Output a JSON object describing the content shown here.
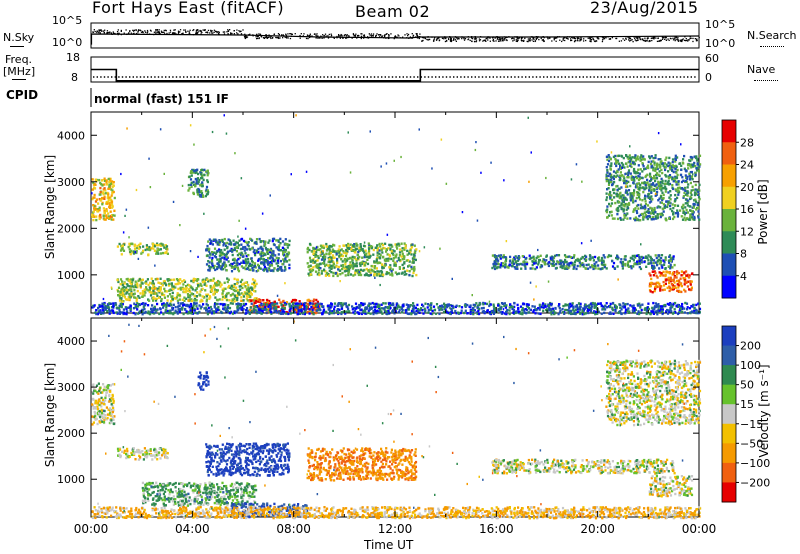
{
  "header": {
    "station": "Fort Hays East (fitACF)",
    "beam": "Beam 02",
    "date": "23/Aug/2015"
  },
  "nsky_panel": {
    "left_label": "N.Sky",
    "left_ticks": [
      "10^5",
      "10^0"
    ],
    "right_label": "N.Search",
    "right_ticks": [
      "10^5",
      "10^0"
    ]
  },
  "freq_panel": {
    "left_label_1": "Freq.",
    "left_label_2": "[MHz]",
    "left_ticks": [
      "18",
      "8"
    ],
    "right_label": "Nave",
    "right_ticks": [
      "60",
      "0"
    ],
    "freq_series": [
      {
        "t": 0.0,
        "mhz": 15.0
      },
      {
        "t": 1.0,
        "mhz": 15.0
      },
      {
        "t": 1.0,
        "mhz": 10.5
      },
      {
        "t": 13.0,
        "mhz": 10.5
      },
      {
        "t": 13.0,
        "mhz": 15.0
      },
      {
        "t": 24.0,
        "mhz": 15.0
      }
    ],
    "nave_level": 12
  },
  "cpid": {
    "label": "CPID",
    "text": "normal (fast) 151 IF"
  },
  "colors": {
    "power_scale": [
      "#0000ff",
      "#1e4fb4",
      "#2e8b57",
      "#6ab23c",
      "#f0d020",
      "#f7a000",
      "#f06010",
      "#e60000"
    ],
    "velocity_scale": [
      "#1c3fbf",
      "#2e5ea8",
      "#2f8a50",
      "#66c22c",
      "#c8c8c8",
      "#f2c000",
      "#f59a00",
      "#f06010",
      "#e60000"
    ]
  },
  "chart_data": [
    {
      "type": "heatmap",
      "name_panel": "power",
      "ylabel": "Slant Range [km]",
      "yticks": [
        "4000",
        "3000",
        "2000",
        "1000"
      ],
      "ylim": [
        180,
        4500
      ],
      "xlim": [
        0,
        24
      ],
      "colorbar": {
        "label": "Power [dB]",
        "ticks": [
          "28",
          "24",
          "20",
          "16",
          "12",
          "8",
          "4"
        ],
        "range": [
          0,
          30
        ]
      },
      "regions": [
        {
          "t0": 0.0,
          "t1": 0.9,
          "r0": 2200,
          "r1": 3100,
          "value": 18
        },
        {
          "t0": 1.0,
          "t1": 3.0,
          "r0": 1450,
          "r1": 1700,
          "value": 14
        },
        {
          "t0": 3.8,
          "t1": 4.6,
          "r0": 2700,
          "r1": 3300,
          "value": 10
        },
        {
          "t0": 4.5,
          "t1": 7.8,
          "r0": 1100,
          "r1": 1800,
          "value": 8
        },
        {
          "t0": 1.0,
          "t1": 6.5,
          "r0": 450,
          "r1": 950,
          "value": 14
        },
        {
          "t0": 6.2,
          "t1": 9.0,
          "r0": 200,
          "r1": 500,
          "value": 26
        },
        {
          "t0": 8.5,
          "t1": 12.8,
          "r0": 1000,
          "r1": 1700,
          "value": 12
        },
        {
          "t0": 15.8,
          "t1": 23.0,
          "r0": 1150,
          "r1": 1450,
          "value": 8
        },
        {
          "t0": 20.3,
          "t1": 24.0,
          "r0": 2200,
          "r1": 3600,
          "value": 10
        },
        {
          "t0": 22.0,
          "t1": 23.7,
          "r0": 650,
          "r1": 1100,
          "value": 24
        },
        {
          "t0": 0.0,
          "t1": 24.0,
          "r0": 180,
          "r1": 420,
          "value": 6
        }
      ]
    },
    {
      "type": "heatmap",
      "name_panel": "velocity",
      "ylabel": "Slant Range [km]",
      "yticks": [
        "4000",
        "3000",
        "2000",
        "1000"
      ],
      "ylim": [
        180,
        4500
      ],
      "xlim": [
        0,
        24
      ],
      "xlabel": "Time UT",
      "xticks": [
        "00:00",
        "04:00",
        "08:00",
        "12:00",
        "16:00",
        "20:00",
        "00:00"
      ],
      "colorbar": {
        "label": "Velocity [m s⁻¹]",
        "ticks": [
          "200",
          "100",
          "50",
          "15",
          "−15",
          "−50",
          "−100",
          "−200"
        ],
        "range": [
          -250,
          250
        ]
      },
      "regions": [
        {
          "t0": 0.0,
          "t1": 0.9,
          "r0": 2200,
          "r1": 3100,
          "value": 0
        },
        {
          "t0": 1.0,
          "t1": 3.0,
          "r0": 1450,
          "r1": 1700,
          "value": 0
        },
        {
          "t0": 4.2,
          "t1": 4.6,
          "r0": 2950,
          "r1": 3350,
          "value": 220
        },
        {
          "t0": 4.5,
          "t1": 7.8,
          "r0": 1100,
          "r1": 1800,
          "value": 180
        },
        {
          "t0": 2.0,
          "t1": 6.5,
          "r0": 450,
          "r1": 950,
          "value": 40
        },
        {
          "t0": 5.5,
          "t1": 8.5,
          "r0": 200,
          "r1": 500,
          "value": 150
        },
        {
          "t0": 8.5,
          "t1": 12.8,
          "r0": 1000,
          "r1": 1700,
          "value": -70
        },
        {
          "t0": 15.8,
          "t1": 23.0,
          "r0": 1150,
          "r1": 1450,
          "value": 0
        },
        {
          "t0": 20.3,
          "t1": 24.0,
          "r0": 2200,
          "r1": 3600,
          "value": 0
        },
        {
          "t0": 22.0,
          "t1": 23.7,
          "r0": 650,
          "r1": 1100,
          "value": 0
        },
        {
          "t0": 0.0,
          "t1": 24.0,
          "r0": 180,
          "r1": 420,
          "value": -30
        }
      ]
    }
  ]
}
